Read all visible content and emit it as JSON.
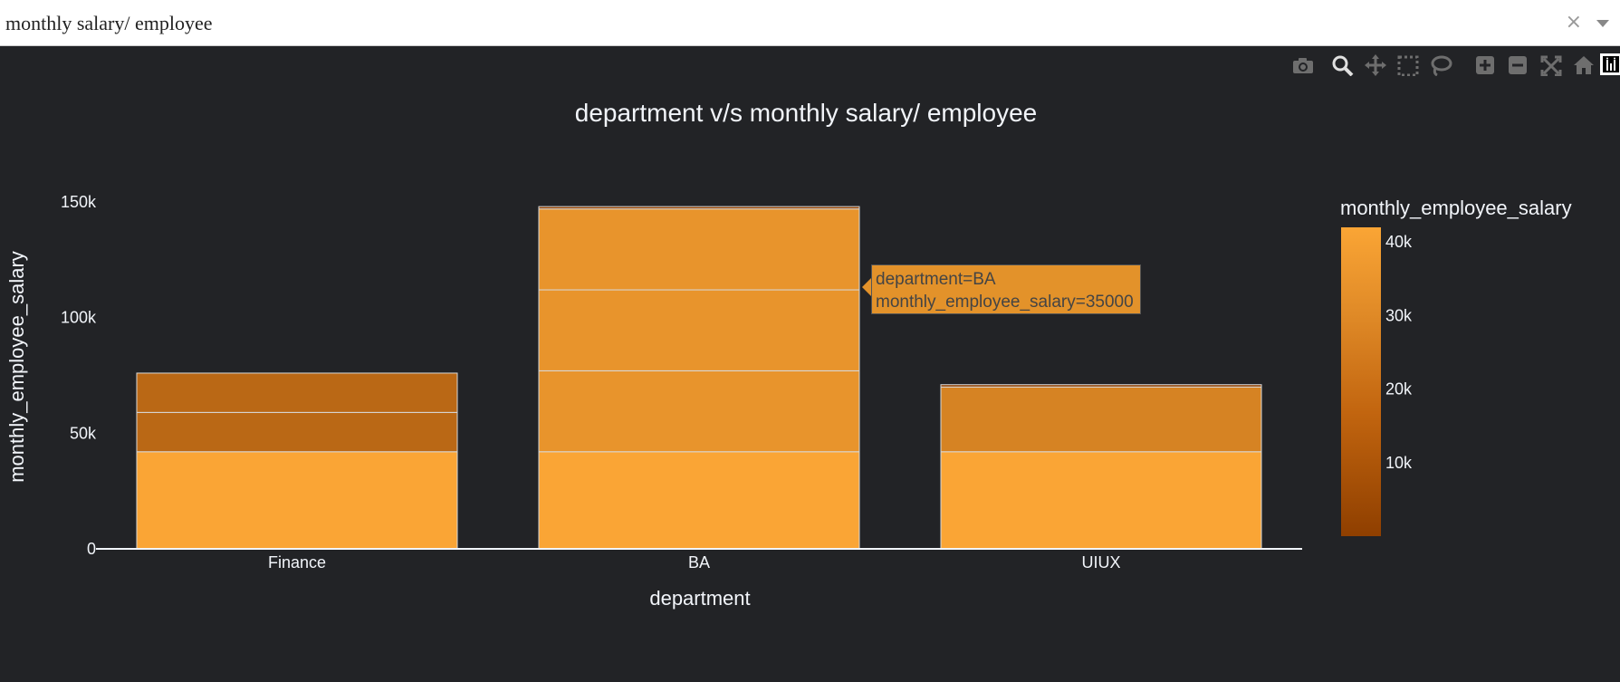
{
  "dropdown": {
    "value": "monthly salary/ employee",
    "clear_icon": "close-icon",
    "arrow_icon": "chevron-down-icon"
  },
  "modebar": {
    "icons": [
      "camera-icon",
      "zoom-icon",
      "pan-icon",
      "box-select-icon",
      "lasso-select-icon",
      "zoom-in-icon",
      "zoom-out-icon",
      "autoscale-icon",
      "reset-axes-icon",
      "plotly-logo-icon"
    ]
  },
  "tooltip": {
    "line1": "department=BA",
    "line2": "monthly_employee_salary=35000"
  },
  "colors": {
    "background": "#222326",
    "axis_text": "#f2f5fa",
    "bar_border": "#d8d8d8",
    "scale_low": "#8f3f00",
    "scale_high": "#faa535"
  },
  "chart_data": {
    "type": "bar",
    "stacked": true,
    "title": "department v/s monthly salary/ employee",
    "xlabel": "department",
    "ylabel": "monthly_employee_salary",
    "categories": [
      "Finance",
      "BA",
      "UIUX"
    ],
    "ylim": [
      0,
      150000
    ],
    "yticks": [
      0,
      50000,
      100000,
      150000
    ],
    "ytick_labels": [
      "0",
      "50k",
      "100k",
      "150k"
    ],
    "segments": [
      [
        42000,
        17000,
        17000
      ],
      [
        42000,
        35000,
        35000,
        35000,
        1000
      ],
      [
        42000,
        28000,
        1000
      ]
    ],
    "colorbar": {
      "title": "monthly_employee_salary",
      "min": 0,
      "max": 42000,
      "ticks": [
        10000,
        20000,
        30000,
        40000
      ],
      "tick_labels": [
        "10k",
        "20k",
        "30k",
        "40k"
      ]
    },
    "grid": false,
    "legend": "colorbar-right"
  }
}
